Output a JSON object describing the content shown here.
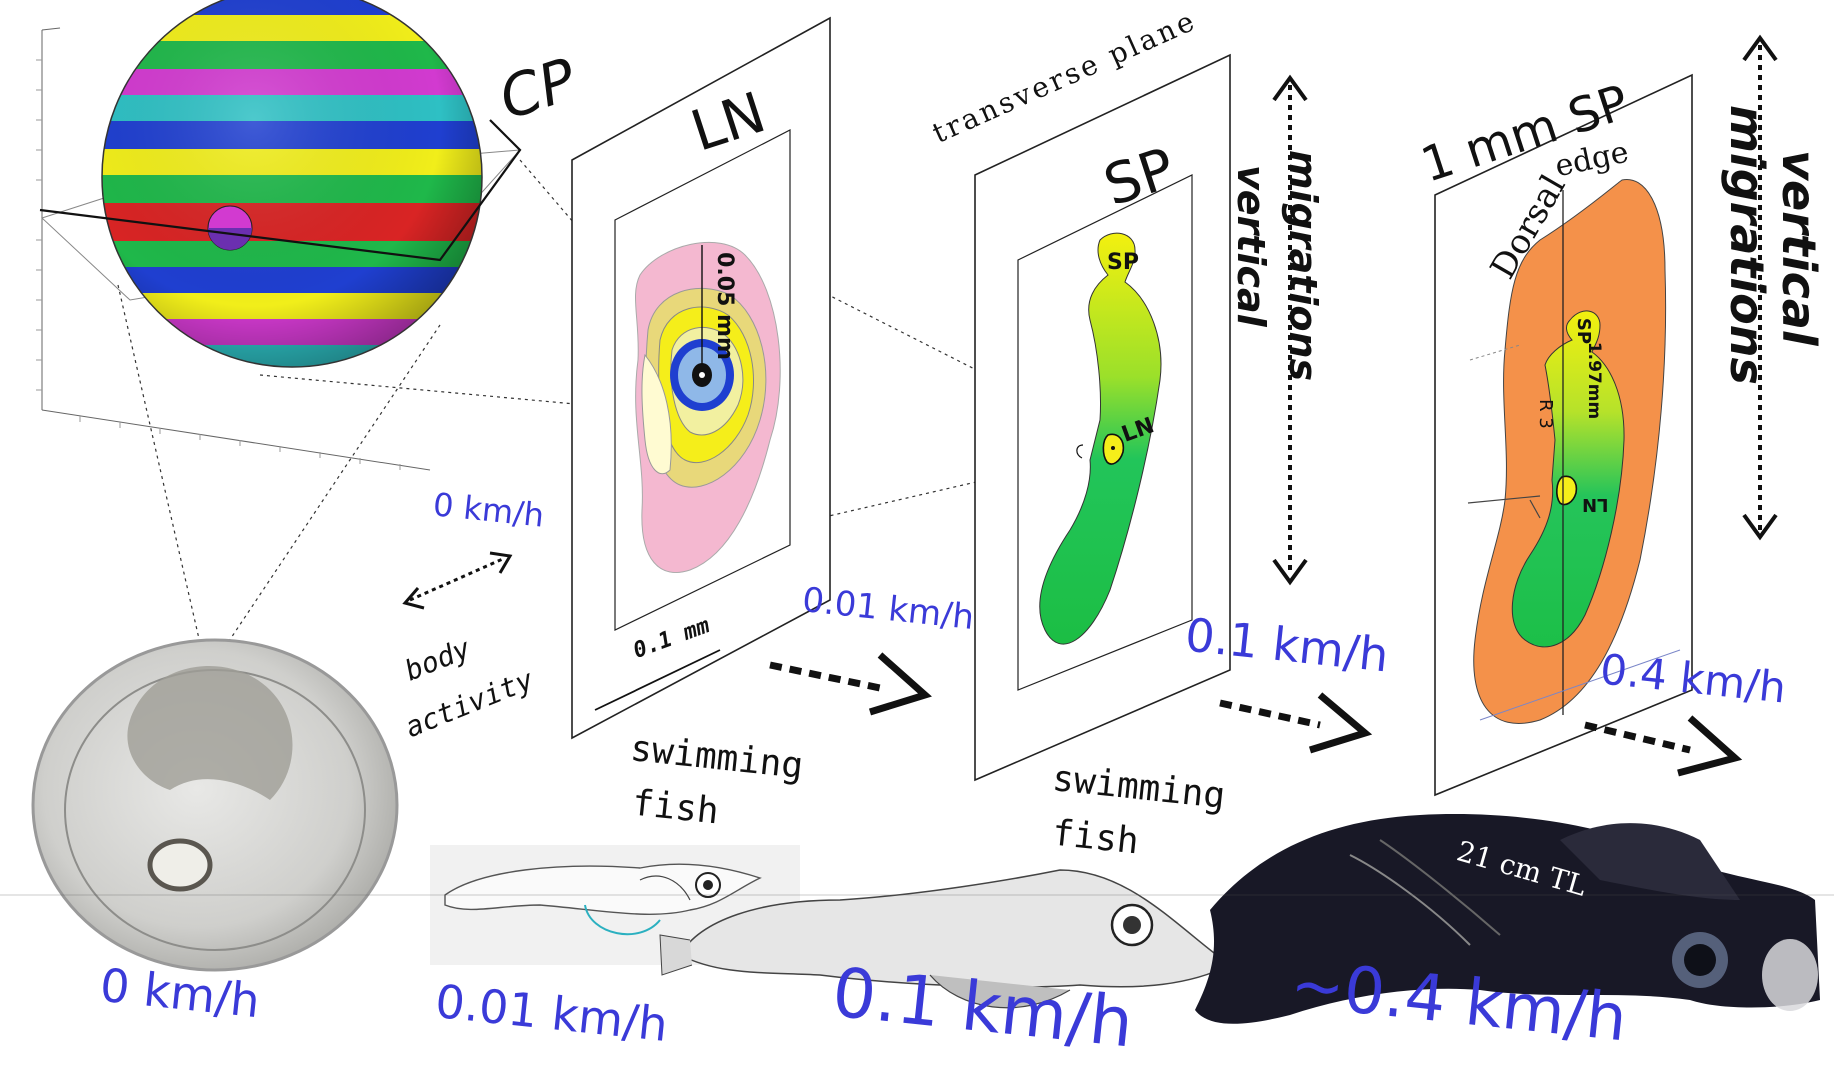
{
  "panels": {
    "cp": {
      "label": "CP"
    },
    "ln": {
      "label": "LN",
      "scale": "0.1 mm",
      "inner_scale": "0.05 mm"
    },
    "sp": {
      "label": "SP",
      "plane": "transverse plane",
      "sp_tag": "SP",
      "ln_tag": "LN"
    },
    "sp1mm": {
      "label": "1 mm SP",
      "dorsal": "Dorsal",
      "edge": "edge",
      "sp_tag": "SP",
      "r_tag": "R 3",
      "measure": "1.97mm",
      "ln_tag": "LN"
    }
  },
  "annotations": {
    "body_activity_1": "body",
    "body_activity_2": "activity",
    "swimming_fish_1a": "swimming",
    "swimming_fish_1b": "fish",
    "swimming_fish_2a": "swimming",
    "swimming_fish_2b": "fish",
    "vertical_1a": "vertical",
    "vertical_1b": "migrations",
    "vertical_2a": "vertical",
    "vertical_2b": "migrations",
    "fish_length": "21 cm TL"
  },
  "speeds": {
    "s0_top": "0 km/h",
    "s001_top": "0.01 km/h",
    "s01_top": "0.1 km/h",
    "s04_top": "0.4 km/h",
    "s0_bottom": "0 km/h",
    "s001_bottom": "0.01 km/h",
    "s01_bottom": "0.1 km/h",
    "s04_bottom": "~0.4 km/h"
  },
  "colors": {
    "speed_blue": "#3a3ad8",
    "pink": "#f4b8d0",
    "green": "#1fc24e",
    "yellow": "#f5ee10",
    "orange": "#f4914a"
  }
}
